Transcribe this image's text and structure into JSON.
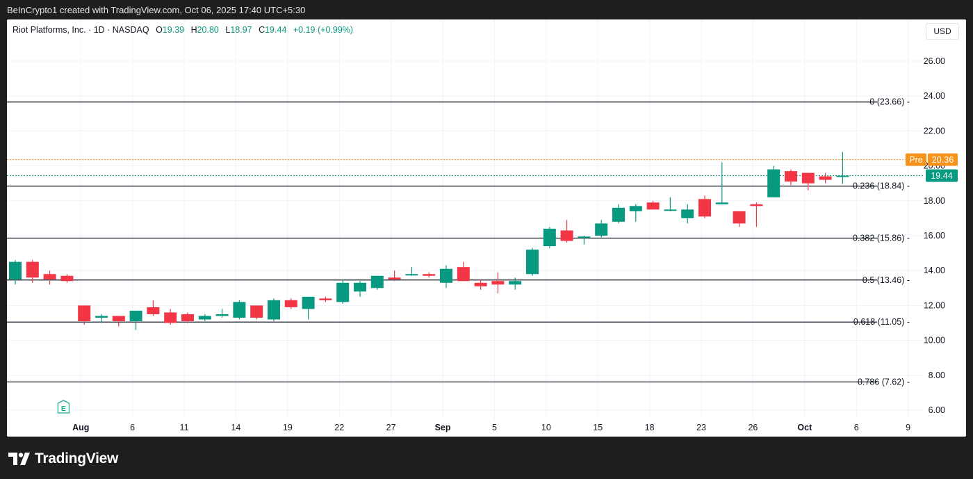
{
  "header": {
    "credit": "BeInCrypto1 created with TradingView.com, Oct 06, 2025 17:40 UTC+5:30"
  },
  "legend": {
    "symbol": "Riot Platforms, Inc. · 1D · NASDAQ",
    "o_label": "O",
    "o_value": "19.39",
    "h_label": "H",
    "h_value": "20.80",
    "l_label": "L",
    "l_value": "18.97",
    "c_label": "C",
    "c_value": "19.44",
    "change": "+0.19 (+0.99%)"
  },
  "currency": "USD",
  "footer": {
    "brand": "TradingView",
    "logo_icon": "tradingview-logo-icon"
  },
  "colors": {
    "up": "#089981",
    "down": "#f23645",
    "pre": "#f7931a",
    "fib": "#131722"
  },
  "chart_data": {
    "type": "candlestick",
    "title": "",
    "ylim": [
      5.5,
      27.5
    ],
    "y_ticks": [
      "26.00",
      "24.00",
      "22.00",
      "20.00",
      "18.00",
      "16.00",
      "14.00",
      "12.00",
      "10.00",
      "8.00",
      "6.00"
    ],
    "x_ticks": [
      {
        "label": "Aug",
        "bold": true,
        "bar": 3.8
      },
      {
        "label": "6",
        "bold": false,
        "bar": 6.8
      },
      {
        "label": "11",
        "bold": false,
        "bar": 9.8
      },
      {
        "label": "14",
        "bold": false,
        "bar": 12.8
      },
      {
        "label": "19",
        "bold": false,
        "bar": 15.8
      },
      {
        "label": "22",
        "bold": false,
        "bar": 18.8
      },
      {
        "label": "27",
        "bold": false,
        "bar": 21.8
      },
      {
        "label": "Sep",
        "bold": true,
        "bar": 24.8
      },
      {
        "label": "5",
        "bold": false,
        "bar": 27.8
      },
      {
        "label": "10",
        "bold": false,
        "bar": 30.8
      },
      {
        "label": "15",
        "bold": false,
        "bar": 33.8
      },
      {
        "label": "18",
        "bold": false,
        "bar": 36.8
      },
      {
        "label": "23",
        "bold": false,
        "bar": 39.8
      },
      {
        "label": "26",
        "bold": false,
        "bar": 42.8
      },
      {
        "label": "Oct",
        "bold": true,
        "bar": 45.8
      },
      {
        "label": "6",
        "bold": false,
        "bar": 48.8
      },
      {
        "label": "9",
        "bold": false,
        "bar": 51.8
      }
    ],
    "candles": [
      {
        "o": 13.5,
        "h": 14.6,
        "l": 13.2,
        "c": 14.5
      },
      {
        "o": 14.5,
        "h": 14.6,
        "l": 13.3,
        "c": 13.6
      },
      {
        "o": 13.8,
        "h": 14.0,
        "l": 13.2,
        "c": 13.5
      },
      {
        "o": 13.7,
        "h": 13.8,
        "l": 13.3,
        "c": 13.4
      },
      {
        "o": 12.0,
        "h": 12.0,
        "l": 10.9,
        "c": 11.1
      },
      {
        "o": 11.3,
        "h": 11.5,
        "l": 11.0,
        "c": 11.4
      },
      {
        "o": 11.4,
        "h": 11.4,
        "l": 10.8,
        "c": 11.1
      },
      {
        "o": 11.1,
        "h": 11.7,
        "l": 10.6,
        "c": 11.7
      },
      {
        "o": 11.9,
        "h": 12.3,
        "l": 11.4,
        "c": 11.5
      },
      {
        "o": 11.6,
        "h": 11.8,
        "l": 10.9,
        "c": 11.0
      },
      {
        "o": 11.5,
        "h": 11.6,
        "l": 11.0,
        "c": 11.1
      },
      {
        "o": 11.2,
        "h": 11.5,
        "l": 11.1,
        "c": 11.4
      },
      {
        "o": 11.4,
        "h": 11.8,
        "l": 11.3,
        "c": 11.5
      },
      {
        "o": 11.3,
        "h": 12.3,
        "l": 11.2,
        "c": 12.2
      },
      {
        "o": 12.0,
        "h": 12.0,
        "l": 11.2,
        "c": 11.3
      },
      {
        "o": 11.2,
        "h": 12.4,
        "l": 11.1,
        "c": 12.3
      },
      {
        "o": 12.3,
        "h": 12.4,
        "l": 11.8,
        "c": 11.9
      },
      {
        "o": 11.8,
        "h": 12.5,
        "l": 11.2,
        "c": 12.5
      },
      {
        "o": 12.4,
        "h": 12.5,
        "l": 12.2,
        "c": 12.3
      },
      {
        "o": 12.2,
        "h": 13.5,
        "l": 12.1,
        "c": 13.3
      },
      {
        "o": 12.8,
        "h": 13.4,
        "l": 12.5,
        "c": 13.3
      },
      {
        "o": 13.0,
        "h": 13.7,
        "l": 12.9,
        "c": 13.7
      },
      {
        "o": 13.6,
        "h": 14.0,
        "l": 13.4,
        "c": 13.5
      },
      {
        "o": 13.8,
        "h": 14.2,
        "l": 13.7,
        "c": 13.8
      },
      {
        "o": 13.8,
        "h": 13.9,
        "l": 13.6,
        "c": 13.7
      },
      {
        "o": 13.3,
        "h": 14.3,
        "l": 13.0,
        "c": 14.1
      },
      {
        "o": 14.2,
        "h": 14.5,
        "l": 13.4,
        "c": 13.4
      },
      {
        "o": 13.3,
        "h": 13.5,
        "l": 12.9,
        "c": 13.1
      },
      {
        "o": 13.4,
        "h": 13.9,
        "l": 12.7,
        "c": 13.2
      },
      {
        "o": 13.2,
        "h": 13.6,
        "l": 12.9,
        "c": 13.4
      },
      {
        "o": 13.8,
        "h": 15.3,
        "l": 13.7,
        "c": 15.2
      },
      {
        "o": 15.4,
        "h": 16.5,
        "l": 15.3,
        "c": 16.4
      },
      {
        "o": 16.3,
        "h": 16.9,
        "l": 15.6,
        "c": 15.7
      },
      {
        "o": 15.9,
        "h": 16.0,
        "l": 15.5,
        "c": 15.95
      },
      {
        "o": 16.0,
        "h": 16.9,
        "l": 15.9,
        "c": 16.7
      },
      {
        "o": 16.8,
        "h": 17.8,
        "l": 16.7,
        "c": 17.6
      },
      {
        "o": 17.4,
        "h": 17.8,
        "l": 16.8,
        "c": 17.7
      },
      {
        "o": 17.9,
        "h": 18.0,
        "l": 17.5,
        "c": 17.5
      },
      {
        "o": 17.5,
        "h": 18.2,
        "l": 17.4,
        "c": 17.5
      },
      {
        "o": 17.0,
        "h": 17.8,
        "l": 16.7,
        "c": 17.5
      },
      {
        "o": 18.1,
        "h": 18.3,
        "l": 17.0,
        "c": 17.1
      },
      {
        "o": 17.8,
        "h": 20.2,
        "l": 17.8,
        "c": 17.9
      },
      {
        "o": 17.4,
        "h": 17.4,
        "l": 16.5,
        "c": 16.7
      },
      {
        "o": 17.8,
        "h": 17.9,
        "l": 16.5,
        "c": 17.7
      },
      {
        "o": 18.2,
        "h": 20.0,
        "l": 18.2,
        "c": 19.8
      },
      {
        "o": 19.7,
        "h": 19.8,
        "l": 18.9,
        "c": 19.1
      },
      {
        "o": 19.6,
        "h": 19.6,
        "l": 18.6,
        "c": 19.0
      },
      {
        "o": 19.4,
        "h": 19.6,
        "l": 19.0,
        "c": 19.2
      },
      {
        "o": 19.39,
        "h": 20.8,
        "l": 18.97,
        "c": 19.44
      }
    ],
    "fib_levels": [
      {
        "label": "0 (23.66)",
        "value": 23.66
      },
      {
        "label": "0.236 (18.84)",
        "value": 18.84
      },
      {
        "label": "0.382 (15.86)",
        "value": 15.86
      },
      {
        "label": "0.5 (13.46)",
        "value": 13.46
      },
      {
        "label": "0.618 (11.05)",
        "value": 11.05
      },
      {
        "label": "0.786 (7.62)",
        "value": 7.62
      }
    ],
    "premarket": {
      "label": "Pre",
      "value": 20.36,
      "value_label": "20.36"
    },
    "last_price": {
      "value": 19.44,
      "value_label": "19.44"
    },
    "events": [
      {
        "label": "E",
        "bar": 2.8
      }
    ],
    "grid": true
  }
}
